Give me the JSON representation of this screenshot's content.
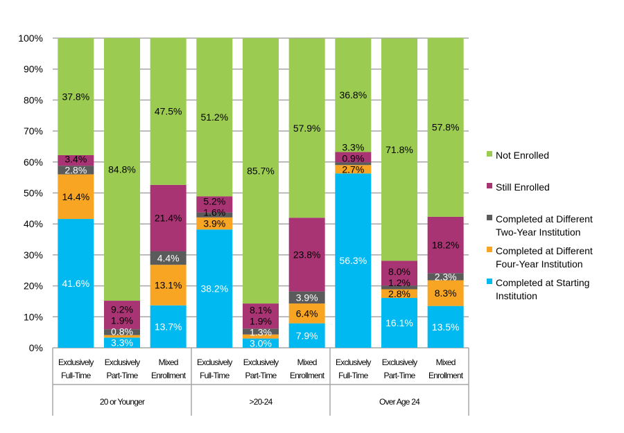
{
  "chart_data": {
    "type": "bar",
    "stacked": true,
    "ylim": [
      0,
      100
    ],
    "y_ticks": [
      "0%",
      "10%",
      "20%",
      "30%",
      "40%",
      "50%",
      "60%",
      "70%",
      "80%",
      "90%",
      "100%"
    ],
    "grid": true,
    "legend_position": "right",
    "groups": [
      {
        "label": "20 or Younger",
        "categories": [
          "Exclusively Full-Time",
          "Exclusively Part-Time",
          "Mixed Enrollment"
        ]
      },
      {
        "label": ">20-24",
        "categories": [
          "Exclusively Full-Time",
          "Exclusively Part-Time",
          "Mixed Enrollment"
        ]
      },
      {
        "label": "Over Age 24",
        "categories": [
          "Exclusively Full-Time",
          "Exclusively Part-Time",
          "Mixed Enrollment"
        ]
      }
    ],
    "categories": [
      [
        "Exclusively",
        "Full-Time"
      ],
      [
        "Exclusively",
        "Part-Time"
      ],
      [
        "Mixed",
        "Enrollment"
      ],
      [
        "Exclusively",
        "Full-Time"
      ],
      [
        "Exclusively",
        "Part-Time"
      ],
      [
        "Mixed",
        "Enrollment"
      ],
      [
        "Exclusively",
        "Full-Time"
      ],
      [
        "Exclusively",
        "Part-Time"
      ],
      [
        "Mixed",
        "Enrollment"
      ]
    ],
    "series": [
      {
        "name": "Completed at Starting Institution",
        "legend_lines": [
          "Completed at Starting",
          "Institution"
        ],
        "color": "#00B9F0",
        "label_color": "#ffffff",
        "values": [
          41.6,
          3.3,
          13.7,
          38.2,
          3.0,
          7.9,
          56.3,
          16.1,
          13.5
        ]
      },
      {
        "name": "Completed at Different Four-Year Institution",
        "legend_lines": [
          "Completed at Different",
          "Four-Year Institution"
        ],
        "color": "#F7A523",
        "label_color": "#000000",
        "values": [
          14.4,
          0.8,
          13.1,
          3.9,
          1.3,
          6.4,
          2.7,
          2.8,
          8.3
        ]
      },
      {
        "name": "Completed at Different Two-Year Institution",
        "legend_lines": [
          "Completed at Different",
          "Two-Year Institution"
        ],
        "color": "#5B5B5B",
        "label_color": "#ffffff",
        "values": [
          2.8,
          1.9,
          4.4,
          1.6,
          1.9,
          3.9,
          0.9,
          1.2,
          2.3
        ]
      },
      {
        "name": "Still Enrolled",
        "legend_lines": [
          "Still Enrolled"
        ],
        "color": "#A93474",
        "label_color": "#000000",
        "values": [
          3.4,
          9.2,
          21.4,
          5.2,
          8.1,
          23.8,
          3.3,
          8.0,
          18.2
        ]
      },
      {
        "name": "Not Enrolled",
        "legend_lines": [
          "Not Enrolled"
        ],
        "color": "#9BCB50",
        "label_color": "#000000",
        "values": [
          37.8,
          84.8,
          47.5,
          51.2,
          85.7,
          57.9,
          36.8,
          71.8,
          57.8
        ]
      }
    ]
  }
}
